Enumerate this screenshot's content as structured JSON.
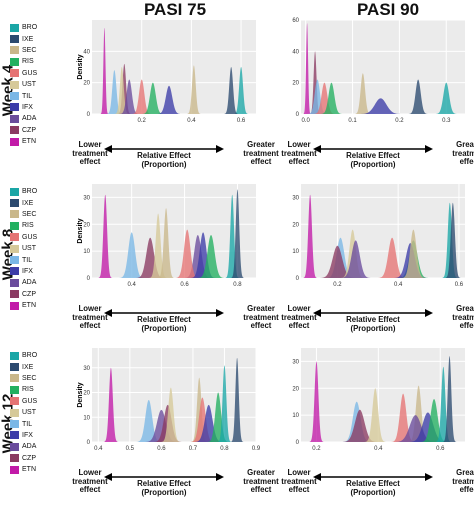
{
  "column_titles": [
    "PASI 75",
    "PASI 90"
  ],
  "row_titles": [
    "Week 4",
    "Week 8",
    "Week 12"
  ],
  "legend": [
    {
      "label": "BRO",
      "color": "#1aa6a6"
    },
    {
      "label": "IXE",
      "color": "#2b4a6f"
    },
    {
      "label": "SEC",
      "color": "#c9b78a"
    },
    {
      "label": "RIS",
      "color": "#22b060"
    },
    {
      "label": "GUS",
      "color": "#e57373"
    },
    {
      "label": "UST",
      "color": "#d6c999"
    },
    {
      "label": "TIL",
      "color": "#7ab7e6"
    },
    {
      "label": "IFX",
      "color": "#3c3ca8"
    },
    {
      "label": "ADA",
      "color": "#6a4c9c"
    },
    {
      "label": "CZP",
      "color": "#8b3a62"
    },
    {
      "label": "ETN",
      "color": "#c21aa8"
    }
  ],
  "annotation": {
    "lower": "Lower treatment effect",
    "greater": "Greater treatment effect",
    "middle": "Relative Effect (Proportion)"
  },
  "density_label": "Density",
  "chart_data": [
    {
      "type": "area",
      "column": "PASI 75",
      "row": "Week 4",
      "ylabel": "Density",
      "xlim": [
        0,
        0.66
      ],
      "ylim": [
        0,
        60
      ],
      "xticks": [
        "0.2",
        "0.4",
        "0.6"
      ],
      "xtick_values": [
        0.2,
        0.4,
        0.6
      ],
      "yticks": [
        "0",
        "20",
        "40"
      ],
      "ytick_values": [
        0,
        20,
        40
      ],
      "series": [
        {
          "name": "ETN",
          "mean": 0.05,
          "peak": 55
        },
        {
          "name": "TIL",
          "mean": 0.09,
          "peak": 28
        },
        {
          "name": "CZP",
          "mean": 0.13,
          "peak": 32
        },
        {
          "name": "UST",
          "mean": 0.12,
          "peak": 30
        },
        {
          "name": "ADA",
          "mean": 0.15,
          "peak": 22
        },
        {
          "name": "GUS",
          "mean": 0.2,
          "peak": 22
        },
        {
          "name": "RIS",
          "mean": 0.245,
          "peak": 20
        },
        {
          "name": "IFX",
          "mean": 0.31,
          "peak": 18
        },
        {
          "name": "SEC",
          "mean": 0.41,
          "peak": 31
        },
        {
          "name": "BRO",
          "mean": 0.6,
          "peak": 30
        },
        {
          "name": "IXE",
          "mean": 0.56,
          "peak": 30
        }
      ]
    },
    {
      "type": "area",
      "column": "PASI 90",
      "row": "Week 4",
      "ylabel": "",
      "xlim": [
        -0.01,
        0.34
      ],
      "ylim": [
        0,
        60
      ],
      "xticks": [
        "0.0",
        "0.1",
        "0.2",
        "0.3"
      ],
      "xtick_values": [
        0,
        0.1,
        0.2,
        0.3
      ],
      "yticks": [
        "0",
        "20",
        "40",
        "60"
      ],
      "ytick_values": [
        0,
        20,
        40,
        60
      ],
      "series": [
        {
          "name": "ETN",
          "mean": 0.003,
          "peak": 58
        },
        {
          "name": "CZP",
          "mean": 0.02,
          "peak": 40
        },
        {
          "name": "TIL",
          "mean": 0.025,
          "peak": 22
        },
        {
          "name": "GUS",
          "mean": 0.04,
          "peak": 20
        },
        {
          "name": "RIS",
          "mean": 0.055,
          "peak": 20
        },
        {
          "name": "SEC",
          "mean": 0.122,
          "peak": 26
        },
        {
          "name": "IFX",
          "mean": 0.16,
          "peak": 10
        },
        {
          "name": "IXE",
          "mean": 0.24,
          "peak": 22
        },
        {
          "name": "BRO",
          "mean": 0.3,
          "peak": 20
        }
      ]
    },
    {
      "type": "area",
      "column": "PASI 75",
      "row": "Week 8",
      "ylabel": "Density",
      "xlim": [
        0.25,
        0.87
      ],
      "ylim": [
        0,
        35
      ],
      "xticks": [
        "0.4",
        "0.6",
        "0.8"
      ],
      "xtick_values": [
        0.4,
        0.6,
        0.8
      ],
      "yticks": [
        "0",
        "10",
        "20",
        "30"
      ],
      "ytick_values": [
        0,
        10,
        20,
        30
      ],
      "series": [
        {
          "name": "ETN",
          "mean": 0.3,
          "peak": 31
        },
        {
          "name": "TIL",
          "mean": 0.4,
          "peak": 17
        },
        {
          "name": "CZP",
          "mean": 0.47,
          "peak": 15
        },
        {
          "name": "UST",
          "mean": 0.5,
          "peak": 24
        },
        {
          "name": "SEC",
          "mean": 0.53,
          "peak": 26
        },
        {
          "name": "ADA",
          "mean": 0.65,
          "peak": 16
        },
        {
          "name": "GUS",
          "mean": 0.61,
          "peak": 18
        },
        {
          "name": "IFX",
          "mean": 0.67,
          "peak": 17
        },
        {
          "name": "RIS",
          "mean": 0.7,
          "peak": 16
        },
        {
          "name": "BRO",
          "mean": 0.78,
          "peak": 31
        },
        {
          "name": "IXE",
          "mean": 0.8,
          "peak": 33
        }
      ]
    },
    {
      "type": "area",
      "column": "PASI 90",
      "row": "Week 8",
      "ylabel": "",
      "xlim": [
        0.08,
        0.62
      ],
      "ylim": [
        0,
        35
      ],
      "xticks": [
        "0.2",
        "0.4",
        "0.6"
      ],
      "xtick_values": [
        0.2,
        0.4,
        0.6
      ],
      "yticks": [
        "0",
        "10",
        "20",
        "30"
      ],
      "ytick_values": [
        0,
        10,
        20,
        30
      ],
      "series": [
        {
          "name": "ETN",
          "mean": 0.11,
          "peak": 31
        },
        {
          "name": "TIL",
          "mean": 0.21,
          "peak": 15
        },
        {
          "name": "CZP",
          "mean": 0.2,
          "peak": 12
        },
        {
          "name": "UST",
          "mean": 0.25,
          "peak": 18
        },
        {
          "name": "ADA",
          "mean": 0.26,
          "peak": 14
        },
        {
          "name": "GUS",
          "mean": 0.38,
          "peak": 15
        },
        {
          "name": "RIS",
          "mean": 0.45,
          "peak": 14
        },
        {
          "name": "IFX",
          "mean": 0.44,
          "peak": 13
        },
        {
          "name": "SEC",
          "mean": 0.45,
          "peak": 18
        },
        {
          "name": "BRO",
          "mean": 0.57,
          "peak": 28
        },
        {
          "name": "IXE",
          "mean": 0.58,
          "peak": 28
        }
      ]
    },
    {
      "type": "area",
      "column": "PASI 75",
      "row": "Week 12",
      "ylabel": "Density",
      "xlim": [
        0.38,
        0.9
      ],
      "ylim": [
        0,
        38
      ],
      "xticks": [
        "0.4",
        "0.5",
        "0.6",
        "0.7",
        "0.8",
        "0.9"
      ],
      "xtick_values": [
        0.4,
        0.5,
        0.6,
        0.7,
        0.8,
        0.9
      ],
      "yticks": [
        "0",
        "10",
        "20",
        "30"
      ],
      "ytick_values": [
        0,
        10,
        20,
        30
      ],
      "series": [
        {
          "name": "ETN",
          "mean": 0.44,
          "peak": 30
        },
        {
          "name": "TIL",
          "mean": 0.56,
          "peak": 17
        },
        {
          "name": "ADA",
          "mean": 0.6,
          "peak": 13
        },
        {
          "name": "CZP",
          "mean": 0.62,
          "peak": 15
        },
        {
          "name": "UST",
          "mean": 0.63,
          "peak": 22
        },
        {
          "name": "SEC",
          "mean": 0.72,
          "peak": 26
        },
        {
          "name": "GUS",
          "mean": 0.73,
          "peak": 18
        },
        {
          "name": "IFX",
          "mean": 0.75,
          "peak": 15
        },
        {
          "name": "RIS",
          "mean": 0.78,
          "peak": 20
        },
        {
          "name": "BRO",
          "mean": 0.8,
          "peak": 31
        },
        {
          "name": "IXE",
          "mean": 0.84,
          "peak": 34
        }
      ]
    },
    {
      "type": "area",
      "column": "PASI 90",
      "row": "Week 12",
      "ylabel": "",
      "xlim": [
        0.15,
        0.68
      ],
      "ylim": [
        0,
        35
      ],
      "xticks": [
        "0.2",
        "0.4",
        "0.6"
      ],
      "xtick_values": [
        0.2,
        0.4,
        0.6
      ],
      "yticks": [
        "0",
        "10",
        "20",
        "30"
      ],
      "ytick_values": [
        0,
        10,
        20,
        30
      ],
      "series": [
        {
          "name": "ETN",
          "mean": 0.2,
          "peak": 30
        },
        {
          "name": "TIL",
          "mean": 0.33,
          "peak": 15
        },
        {
          "name": "CZP",
          "mean": 0.34,
          "peak": 12
        },
        {
          "name": "UST",
          "mean": 0.39,
          "peak": 20
        },
        {
          "name": "GUS",
          "mean": 0.48,
          "peak": 18
        },
        {
          "name": "SEC",
          "mean": 0.53,
          "peak": 21
        },
        {
          "name": "ADA",
          "mean": 0.52,
          "peak": 10
        },
        {
          "name": "IFX",
          "mean": 0.56,
          "peak": 11
        },
        {
          "name": "RIS",
          "mean": 0.58,
          "peak": 16
        },
        {
          "name": "BRO",
          "mean": 0.61,
          "peak": 28
        },
        {
          "name": "IXE",
          "mean": 0.63,
          "peak": 32
        }
      ]
    }
  ]
}
